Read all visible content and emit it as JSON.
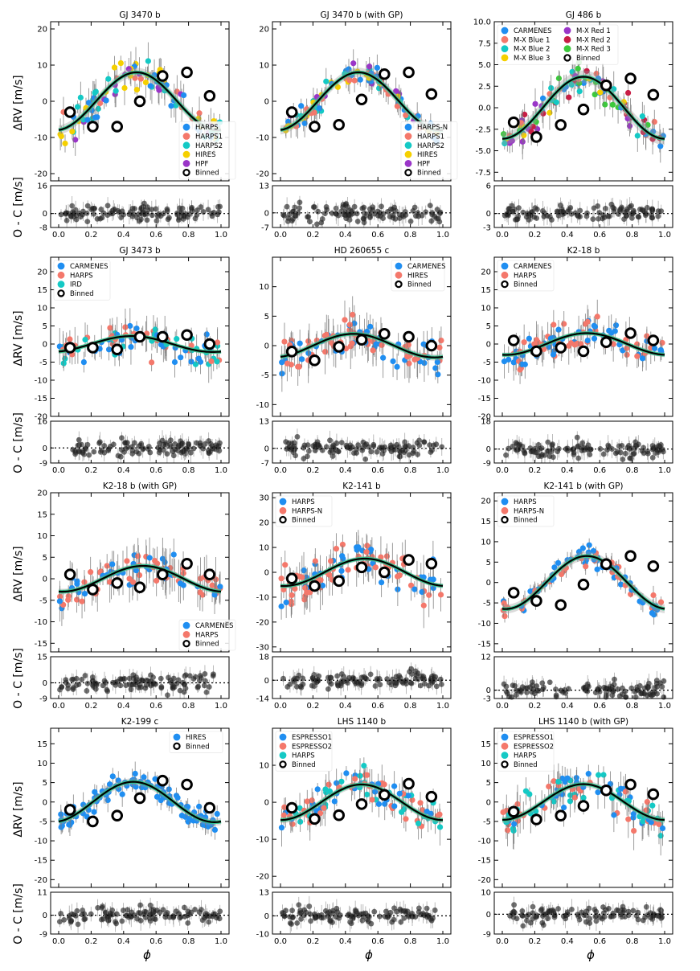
{
  "figure": {
    "ylabel_rv": "ΔRV [m/s]",
    "ylabel_oc": "O - C [m/s]",
    "xlabel": "ϕ",
    "x_ticks": [
      "0.0",
      "0.2",
      "0.4",
      "0.6",
      "0.8",
      "1.0"
    ]
  },
  "colors": {
    "blue": "#1f8ef1",
    "salmon": "#f4786b",
    "teal": "#14c9c5",
    "gold": "#f5d000",
    "purple": "#9a35c8",
    "crimson": "#c81d45",
    "green": "#3cc93c",
    "binned_edge": "#000000",
    "model": "#000000"
  },
  "chart_data": [
    {
      "type": "scatter",
      "title": "GJ 3470 b",
      "ylim": [
        -22,
        22
      ],
      "yticks": [
        -20,
        -10,
        0,
        10,
        20
      ],
      "amp": 8,
      "phase": 0.48,
      "noise": 4,
      "oc_ylim": [
        -8,
        16
      ],
      "oc_ticks": [
        -8,
        0,
        16
      ],
      "legend_pos": "bottom-right",
      "binned_y": [
        -3,
        -7,
        -7,
        0,
        7,
        8,
        1.5
      ],
      "series": [
        {
          "name": "HARPS",
          "color": "blue"
        },
        {
          "name": "HARPS1",
          "color": "salmon"
        },
        {
          "name": "HARPS2",
          "color": "teal"
        },
        {
          "name": "HIRES",
          "color": "gold"
        },
        {
          "name": "HPF",
          "color": "purple"
        },
        {
          "name": "Binned",
          "color": "binned"
        }
      ]
    },
    {
      "type": "scatter",
      "title": "GJ 3470 b (with GP)",
      "ylim": [
        -22,
        22
      ],
      "yticks": [
        -20,
        -10,
        0,
        10,
        20
      ],
      "amp": 8,
      "phase": 0.48,
      "noise": 3,
      "oc_ylim": [
        -7,
        13
      ],
      "oc_ticks": [
        -7,
        0,
        13
      ],
      "legend_pos": "bottom-right",
      "binned_y": [
        -3,
        -7,
        -6.5,
        0.5,
        7.5,
        8,
        2
      ],
      "series": [
        {
          "name": "HARPS-N",
          "color": "blue"
        },
        {
          "name": "HARPS1",
          "color": "salmon"
        },
        {
          "name": "HARPS2",
          "color": "teal"
        },
        {
          "name": "HIRES",
          "color": "gold"
        },
        {
          "name": "HPF",
          "color": "purple"
        },
        {
          "name": "Binned",
          "color": "binned"
        }
      ]
    },
    {
      "type": "scatter",
      "title": "GJ 486 b",
      "ylim": [
        -8.5,
        10
      ],
      "yticks": [
        -7.5,
        -5.0,
        -2.5,
        0.0,
        2.5,
        5.0,
        7.5,
        10.0
      ],
      "ytick_fmt": 1,
      "amp": 3.6,
      "phase": 0.5,
      "noise": 1.6,
      "oc_ylim": [
        -3,
        6
      ],
      "oc_ticks": [
        -3,
        0,
        6
      ],
      "legend_pos": "top-left-2col",
      "binned_y": [
        -1.7,
        -3.4,
        -2,
        -0.2,
        2.6,
        3.4,
        1.5
      ],
      "series": [
        {
          "name": "CARMENES",
          "color": "blue"
        },
        {
          "name": "M-X Blue 1",
          "color": "salmon"
        },
        {
          "name": "M-X Blue 2",
          "color": "teal"
        },
        {
          "name": "M-X Blue 3",
          "color": "gold"
        },
        {
          "name": "M-X Red 1",
          "color": "purple"
        },
        {
          "name": "M-X Red 2",
          "color": "crimson"
        },
        {
          "name": "M-X Red 3",
          "color": "green"
        },
        {
          "name": "Binned",
          "color": "binned"
        }
      ]
    },
    {
      "type": "scatter",
      "title": "GJ 3473 b",
      "ylim": [
        -20,
        24
      ],
      "yticks": [
        -20,
        -15,
        -10,
        -5,
        0,
        5,
        10,
        15,
        20
      ],
      "amp": 2.2,
      "phase": 0.45,
      "noise": 4,
      "oc_ylim": [
        -9,
        16
      ],
      "oc_ticks": [
        -9,
        0,
        16
      ],
      "legend_pos": "top-left",
      "binned_y": [
        -1,
        -1,
        -1.5,
        2,
        2,
        2.5,
        0
      ],
      "series": [
        {
          "name": "CARMENES",
          "color": "blue"
        },
        {
          "name": "HARPS",
          "color": "salmon"
        },
        {
          "name": "IRD",
          "color": "teal"
        },
        {
          "name": "Binned",
          "color": "binned"
        }
      ]
    },
    {
      "type": "scatter",
      "title": "HD 260655 c",
      "ylim": [
        -12,
        15
      ],
      "yticks": [
        -10,
        -5,
        0,
        5,
        10
      ],
      "amp": 2,
      "phase": 0.45,
      "noise": 3,
      "oc_ylim": [
        -7,
        13
      ],
      "oc_ticks": [
        -7,
        0,
        13
      ],
      "legend_pos": "top-right",
      "binned_y": [
        -1,
        -2.5,
        -0.2,
        1,
        2,
        1.5,
        0
      ],
      "series": [
        {
          "name": "CARMENES",
          "color": "blue"
        },
        {
          "name": "HIRES",
          "color": "salmon"
        },
        {
          "name": "Binned",
          "color": "binned"
        }
      ]
    },
    {
      "type": "scatter",
      "title": "K2-18 b",
      "ylim": [
        -20,
        24
      ],
      "yticks": [
        -20,
        -15,
        -10,
        -5,
        0,
        5,
        10,
        15,
        20
      ],
      "amp": 3,
      "phase": 0.52,
      "noise": 4,
      "oc_ylim": [
        -9,
        18
      ],
      "oc_ticks": [
        -9,
        0,
        18
      ],
      "legend_pos": "top-left",
      "binned_y": [
        1,
        -2,
        -1,
        -2,
        0.5,
        3,
        1
      ],
      "series": [
        {
          "name": "CARMENES",
          "color": "blue"
        },
        {
          "name": "HARPS",
          "color": "salmon"
        },
        {
          "name": "Binned",
          "color": "binned"
        }
      ]
    },
    {
      "type": "scatter",
      "title": "K2-18 b (with GP)",
      "ylim": [
        -17,
        20
      ],
      "yticks": [
        -15,
        -10,
        -5,
        0,
        5,
        10,
        15,
        20
      ],
      "amp": 3,
      "phase": 0.52,
      "noise": 4,
      "oc_ylim": [
        -9,
        15
      ],
      "oc_ticks": [
        -9,
        0,
        15
      ],
      "legend_pos": "bottom-right",
      "binned_y": [
        1,
        -2.5,
        -1,
        -2,
        1,
        3.5,
        1
      ],
      "series": [
        {
          "name": "CARMENES",
          "color": "blue"
        },
        {
          "name": "HARPS",
          "color": "salmon"
        },
        {
          "name": "Binned",
          "color": "binned"
        }
      ]
    },
    {
      "type": "scatter",
      "title": "K2-141 b",
      "ylim": [
        -32,
        32
      ],
      "yticks": [
        -30,
        -20,
        -10,
        0,
        10,
        20,
        30
      ],
      "amp": 5.5,
      "phase": 0.52,
      "noise": 7,
      "oc_ylim": [
        -14,
        18
      ],
      "oc_ticks": [
        -14,
        0,
        18
      ],
      "legend_pos": "top-left",
      "binned_y": [
        -2.5,
        -5.5,
        -3.5,
        2,
        0,
        5,
        3.5
      ],
      "series": [
        {
          "name": "HARPS",
          "color": "blue"
        },
        {
          "name": "HARPS-N",
          "color": "salmon"
        },
        {
          "name": "Binned",
          "color": "binned"
        }
      ]
    },
    {
      "type": "scatter",
      "title": "K2-141 b (with GP)",
      "ylim": [
        -17,
        22
      ],
      "yticks": [
        -15,
        -10,
        -5,
        0,
        5,
        10,
        15,
        20
      ],
      "amp": 6.5,
      "phase": 0.52,
      "noise": 2,
      "oc_ylim": [
        -3,
        12
      ],
      "oc_ticks": [
        -3,
        0,
        12
      ],
      "legend_pos": "top-left",
      "binned_y": [
        -2.5,
        -4.5,
        -5.5,
        -0.5,
        4.5,
        6.5,
        4
      ],
      "series": [
        {
          "name": "HARPS",
          "color": "blue"
        },
        {
          "name": "HARPS-N",
          "color": "salmon"
        },
        {
          "name": "Binned",
          "color": "binned"
        }
      ]
    },
    {
      "type": "scatter",
      "title": "K2-199 c",
      "ylim": [
        -22,
        19
      ],
      "yticks": [
        -20,
        -15,
        -10,
        -5,
        0,
        5,
        10,
        15
      ],
      "amp": 5.2,
      "phase": 0.46,
      "noise": 2.5,
      "oc_ylim": [
        -9,
        11
      ],
      "oc_ticks": [
        -9,
        0,
        11
      ],
      "legend_pos": "top-right",
      "binned_y": [
        -2,
        -5,
        -3.5,
        1,
        5.5,
        4.5,
        -1.5
      ],
      "series": [
        {
          "name": "HIRES",
          "color": "blue"
        },
        {
          "name": "Binned",
          "color": "binned"
        }
      ]
    },
    {
      "type": "scatter",
      "title": "LHS 1140 b",
      "ylim": [
        -23,
        20
      ],
      "yticks": [
        -20,
        -10,
        0,
        10
      ],
      "amp": 4.8,
      "phase": 0.5,
      "noise": 4,
      "oc_ylim": [
        -10,
        13
      ],
      "oc_ticks": [
        -10,
        0,
        13
      ],
      "legend_pos": "top-left",
      "binned_y": [
        -1.5,
        -4.5,
        -3.5,
        -0.5,
        2,
        5,
        1.5
      ],
      "series": [
        {
          "name": "ESPRESSO1",
          "color": "blue"
        },
        {
          "name": "ESPRESSO2",
          "color": "salmon"
        },
        {
          "name": "HARPS",
          "color": "teal"
        },
        {
          "name": "Binned",
          "color": "binned"
        }
      ]
    },
    {
      "type": "scatter",
      "title": "LHS 1140 b (with GP)",
      "ylim": [
        -22,
        19
      ],
      "yticks": [
        -20,
        -15,
        -10,
        -5,
        0,
        5,
        10,
        15
      ],
      "amp": 4.6,
      "phase": 0.5,
      "noise": 4,
      "oc_ylim": [
        -9,
        10
      ],
      "oc_ticks": [
        -9,
        0,
        10
      ],
      "legend_pos": "top-left",
      "binned_y": [
        -2.5,
        -4.5,
        -3.5,
        -1,
        3,
        4.5,
        2
      ],
      "series": [
        {
          "name": "ESPRESSO1",
          "color": "blue"
        },
        {
          "name": "ESPRESSO2",
          "color": "salmon"
        },
        {
          "name": "HARPS",
          "color": "teal"
        },
        {
          "name": "Binned",
          "color": "binned"
        }
      ]
    }
  ]
}
